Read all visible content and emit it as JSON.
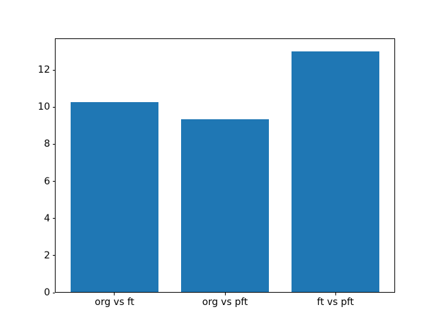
{
  "figure": {
    "background": "#ffffff"
  },
  "chart_data": {
    "type": "bar",
    "title": "",
    "xlabel": "",
    "ylabel": "",
    "categories": [
      "org vs ft",
      "org vs pft",
      "ft vs pft"
    ],
    "values": [
      10.25,
      9.35,
      13.0
    ],
    "yticks": [
      0,
      2,
      4,
      6,
      8,
      10,
      12
    ],
    "ylim": [
      0,
      13.7
    ],
    "xlim": [
      -0.54,
      2.54
    ],
    "bar_width": 0.8,
    "bar_color": "#1f77b4",
    "axis_color": "#000000",
    "text_color": "#000000",
    "grid": false,
    "legend": "none"
  }
}
